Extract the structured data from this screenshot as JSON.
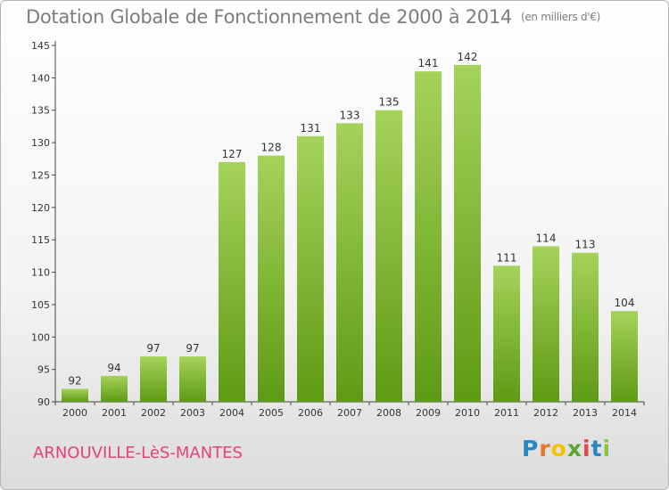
{
  "header": {
    "title": "Dotation Globale de Fonctionnement de 2000 à 2014",
    "unit": "(en milliers d'€)"
  },
  "footer": {
    "commune": "ARNOUVILLE-LèS-MANTES",
    "logo_letters": [
      "P",
      "r",
      "o",
      "x",
      "i",
      "t",
      "i"
    ],
    "logo_colors": [
      "#2b86c5",
      "#e8742a",
      "#f2c200",
      "#5aa732",
      "#e04a4a",
      "#2b86c5",
      "#8cc63f"
    ]
  },
  "chart_data": {
    "type": "bar",
    "title": "Dotation Globale de Fonctionnement de 2000 à 2014",
    "subtitle": "(en milliers d'€)",
    "xlabel": "",
    "ylabel": "",
    "categories": [
      "2000",
      "2001",
      "2002",
      "2003",
      "2004",
      "2005",
      "2006",
      "2007",
      "2008",
      "2009",
      "2010",
      "2011",
      "2012",
      "2013",
      "2014"
    ],
    "values": [
      92,
      94,
      97,
      97,
      127,
      128,
      131,
      133,
      135,
      141,
      142,
      111,
      114,
      113,
      104
    ],
    "ylim": [
      90,
      145
    ],
    "yticks": [
      90,
      95,
      100,
      105,
      110,
      115,
      120,
      125,
      130,
      135,
      140,
      145
    ],
    "grid": false,
    "bar_color_top": "#a5d35a",
    "bar_color_bottom": "#5e9a14"
  }
}
